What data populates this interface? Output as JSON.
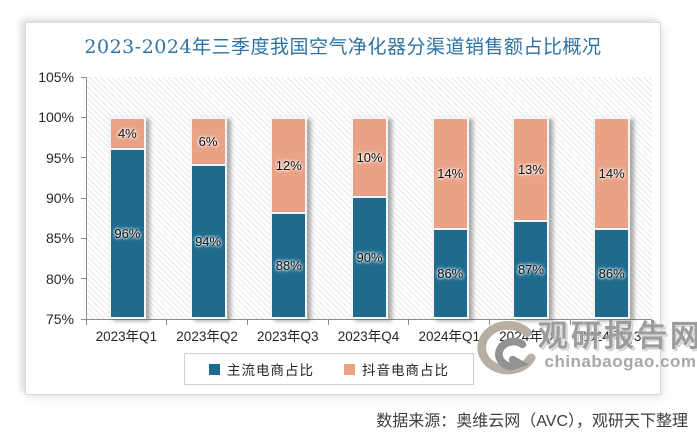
{
  "chart_data": {
    "type": "bar",
    "stacked": true,
    "title": "2023-2024年三季度我国空气净化器分渠道销售额占比概况",
    "categories": [
      "2023年Q1",
      "2023年Q2",
      "2023年Q3",
      "2023年Q4",
      "2024年Q1",
      "2024年Q2",
      "2024年Q3"
    ],
    "series": [
      {
        "name": "主流电商占比",
        "color": "#1f6b8e",
        "values": [
          96,
          94,
          88,
          90,
          86,
          87,
          86
        ]
      },
      {
        "name": "抖音电商占比",
        "color": "#e9a286",
        "values": [
          4,
          6,
          12,
          10,
          14,
          13,
          14
        ]
      }
    ],
    "value_suffix": "%",
    "ylim": [
      75,
      105
    ],
    "ytick_step": 5,
    "yticks": [
      "105%",
      "100%",
      "95%",
      "90%",
      "85%",
      "80%",
      "75%"
    ],
    "grid": false,
    "legend_position": "bottom",
    "plot_background": "diagonal-hatch",
    "title_color": "#2e73a6"
  },
  "watermark": {
    "name": "观研报告网",
    "domain": "chinabaogao.com",
    "logo": "swirl-icon"
  },
  "footer": {
    "source_note": "数据来源：奥维云网（AVC），观研天下整理"
  }
}
